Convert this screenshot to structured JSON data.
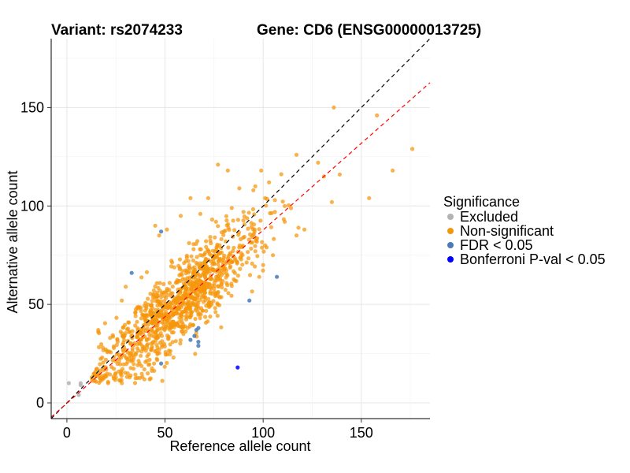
{
  "chart_data": {
    "type": "scatter",
    "title_variant": "Variant: rs2074233",
    "title_gene": "Gene: CD6 (ENSG00000013725)",
    "xlabel": "Reference allele count",
    "ylabel": "Alternative allele count",
    "xlim": [
      -8,
      185
    ],
    "ylim": [
      -8,
      185
    ],
    "xticks": [
      0,
      50,
      100,
      150
    ],
    "yticks": [
      0,
      50,
      100,
      150
    ],
    "grid": true,
    "reference_lines": [
      {
        "kind": "identity",
        "color": "#000000",
        "slope": 1.0,
        "intercept": 0,
        "style": "dashed"
      },
      {
        "kind": "fit",
        "color": "#ff0000",
        "slope": 0.88,
        "intercept": -0.2,
        "style": "dashed"
      }
    ],
    "legend": {
      "title": "Significance",
      "position": "right",
      "entries": [
        {
          "label": "Excluded",
          "color": "#b3b3b3"
        },
        {
          "label": "Non-significant",
          "color": "#f5960a"
        },
        {
          "label": "FDR < 0.05",
          "color": "#4a7bb7"
        },
        {
          "label": "Bonferroni P-val < 0.05",
          "color": "#0000ff"
        }
      ]
    },
    "series": [
      {
        "name": "Excluded",
        "points": [
          [
            1,
            10
          ],
          [
            7,
            9
          ],
          [
            6,
            4
          ],
          [
            7,
            10
          ]
        ]
      },
      {
        "name": "FDR < 0.05",
        "points": [
          [
            48,
            87
          ],
          [
            33,
            66
          ],
          [
            107,
            64
          ],
          [
            93,
            52
          ],
          [
            66,
            37
          ],
          [
            67,
            38
          ],
          [
            65,
            34
          ],
          [
            67,
            29
          ],
          [
            67,
            31
          ],
          [
            63,
            32
          ],
          [
            48,
            20
          ]
        ]
      },
      {
        "name": "Bonferroni P-val < 0.05",
        "points": [
          [
            87,
            18
          ]
        ]
      },
      {
        "name": "Non-significant",
        "generator": {
          "count": 1100,
          "x_mean": 57,
          "x_sd": 20,
          "slope": 0.86,
          "intercept": 1,
          "noise_sd": 10,
          "seed": 17
        },
        "points": [
          [
            136,
            150
          ],
          [
            158,
            146
          ],
          [
            176,
            129
          ],
          [
            135,
            102
          ],
          [
            166,
            118
          ],
          [
            154,
            104
          ],
          [
            117,
            126
          ],
          [
            128,
            122
          ],
          [
            139,
            116
          ],
          [
            131,
            115
          ],
          [
            77,
            121
          ],
          [
            82,
            118
          ],
          [
            99,
            118
          ],
          [
            103,
            112
          ],
          [
            111,
            100
          ],
          [
            106,
            103
          ],
          [
            101,
            104
          ],
          [
            95,
            108
          ],
          [
            84,
            99
          ],
          [
            90,
            97
          ],
          [
            96,
            110
          ],
          [
            63,
            104
          ],
          [
            72,
            104
          ],
          [
            68,
            96
          ],
          [
            58,
            95
          ],
          [
            51,
            88
          ],
          [
            45,
            90
          ],
          [
            47,
            85
          ],
          [
            76,
            92
          ],
          [
            101,
            80
          ],
          [
            105,
            75
          ],
          [
            96,
            77
          ],
          [
            100,
            70
          ],
          [
            98,
            64
          ],
          [
            118,
            89
          ],
          [
            121,
            88
          ],
          [
            117,
            85
          ],
          [
            111,
            92
          ],
          [
            14,
            15
          ],
          [
            18,
            12
          ],
          [
            21,
            10
          ],
          [
            20,
            17
          ],
          [
            25,
            13
          ],
          [
            16,
            37
          ],
          [
            18,
            23
          ],
          [
            22,
            33
          ],
          [
            31,
            15
          ],
          [
            37,
            20
          ],
          [
            35,
            46
          ],
          [
            28,
            52
          ],
          [
            30,
            59
          ]
        ]
      }
    ]
  }
}
